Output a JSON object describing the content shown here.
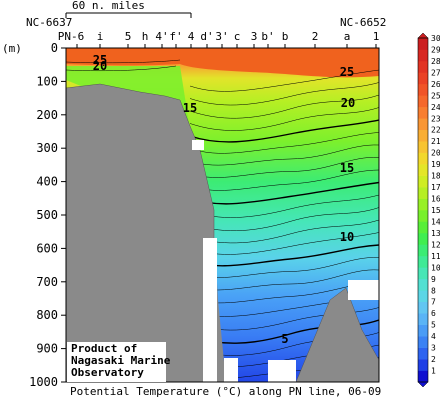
{
  "chart_data": {
    "type": "heatmap",
    "title": "Potential Temperature (°C) along PN line, 06-09",
    "ylabel": "(m)",
    "ylim": [
      0,
      1000
    ],
    "y_ticks": [
      0,
      100,
      200,
      300,
      400,
      500,
      600,
      700,
      800,
      900,
      1000
    ],
    "scale_bar_label": "60 n. miles",
    "end_station_labels": [
      "NC-6637",
      "NC-6652"
    ],
    "stations": [
      "PN-6",
      "i",
      "5",
      "h",
      "4'",
      "f'",
      "4",
      "d'",
      "3'",
      "c",
      "3",
      "b'",
      "b",
      "2",
      "a",
      "1"
    ],
    "colorbar_ticks": [
      1,
      2,
      3,
      4,
      5,
      6,
      7,
      8,
      9,
      10,
      11,
      12,
      13,
      14,
      15,
      16,
      17,
      18,
      19,
      20,
      21,
      22,
      23,
      24,
      25,
      26,
      27,
      28,
      29,
      30
    ],
    "colorbar_colors": [
      "#1010d0",
      "#1f3fe6",
      "#2d63f0",
      "#3b82f4",
      "#4a9cf6",
      "#5ab4f6",
      "#62c6f2",
      "#5cd6e6",
      "#52e0d2",
      "#48e6b6",
      "#40ea96",
      "#3cec74",
      "#40ee50",
      "#58ef38",
      "#78f02c",
      "#98f026",
      "#b6ef24",
      "#cfed24",
      "#e4e628",
      "#f2d82c",
      "#f7c432",
      "#f9ae34",
      "#f99634",
      "#f87e30",
      "#f5682c",
      "#f05428",
      "#ea4226",
      "#e23424",
      "#d82822",
      "#cc1e20"
    ],
    "contour_labels": [
      25,
      20,
      25,
      20,
      15,
      15,
      10,
      5
    ],
    "annotation": [
      "Product of",
      "Nagasaki Marine",
      "Observatory"
    ]
  }
}
